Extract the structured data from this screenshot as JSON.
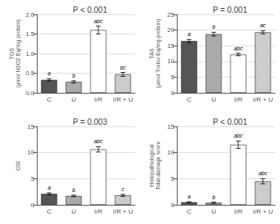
{
  "chart_data": [
    {
      "type": "bar",
      "title": "P < 0.001",
      "ylabel": "TOS\n(μmol H2O2 Eq/mg protein)",
      "categories": [
        "C",
        "U",
        "I/R",
        "I/R + U"
      ],
      "values": [
        0.33,
        0.28,
        1.6,
        0.47
      ],
      "errors": [
        0.03,
        0.03,
        0.1,
        0.05
      ],
      "annotations": [
        "a",
        "b",
        "abc",
        "bc"
      ],
      "colors": [
        "#555555",
        "#aaaaaa",
        "#ffffff",
        "#cccccc"
      ],
      "ylim": [
        0,
        2.0
      ],
      "yticks": [
        {
          "value": 0.0,
          "label": "0.0"
        },
        0.5,
        {
          "value": 1.0,
          "label": "1.0"
        },
        1.5,
        {
          "value": 2.0,
          "label": "2.0"
        }
      ],
      "grid": true
    },
    {
      "type": "bar",
      "title": "P = 0.001",
      "ylabel": "TAS\n(μmol Trolox Eq/mg protein)",
      "categories": [
        "C",
        "U",
        "I/R",
        "I/R + U"
      ],
      "values": [
        16.5,
        18.7,
        12.2,
        19.3
      ],
      "errors": [
        0.5,
        0.6,
        0.4,
        0.5
      ],
      "annotations": [
        "a",
        "b",
        "abc",
        "ac"
      ],
      "colors": [
        "#555555",
        "#aaaaaa",
        "#ffffff",
        "#cccccc"
      ],
      "ylim": [
        0,
        25
      ],
      "yticks": [
        0,
        5,
        10,
        15,
        20,
        25
      ],
      "grid": true
    },
    {
      "type": "bar",
      "title": "P = 0.003",
      "ylabel": "OSI",
      "categories": [
        "C",
        "U",
        "I/R",
        "I/R + U"
      ],
      "values": [
        2.1,
        1.7,
        10.6,
        1.8
      ],
      "errors": [
        0.2,
        0.15,
        0.5,
        0.2
      ],
      "annotations": [
        "a",
        "b",
        "abc",
        "c"
      ],
      "colors": [
        "#555555",
        "#aaaaaa",
        "#ffffff",
        "#cccccc"
      ],
      "ylim": [
        0,
        15
      ],
      "yticks": [
        0,
        5,
        10,
        15
      ],
      "grid": true
    },
    {
      "type": "bar",
      "title": "P < 0.001",
      "ylabel": "Histopathological\nTotal damage score",
      "categories": [
        "C",
        "U",
        "I/R",
        "I/R + U"
      ],
      "values": [
        0.5,
        0.4,
        11.5,
        4.5
      ],
      "errors": [
        0.1,
        0.1,
        0.7,
        0.5
      ],
      "annotations": [
        "a",
        "b",
        "abc",
        "abc"
      ],
      "colors": [
        "#555555",
        "#aaaaaa",
        "#ffffff",
        "#cccccc"
      ],
      "ylim": [
        0,
        15
      ],
      "yticks": [
        0,
        5,
        10,
        15
      ],
      "grid": true
    }
  ]
}
